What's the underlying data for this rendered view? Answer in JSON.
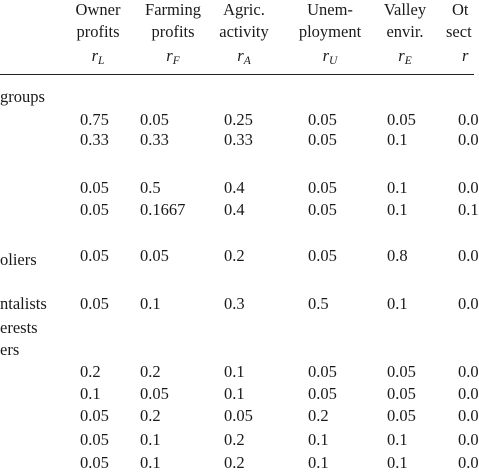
{
  "columns": [
    {
      "line1": "Owner",
      "line2": "profits",
      "var": "r",
      "sub": "L"
    },
    {
      "line1": "Farming",
      "line2": "profits",
      "var": "r",
      "sub": "F"
    },
    {
      "line1": "Agric.",
      "line2": "activity",
      "var": "r",
      "sub": "A"
    },
    {
      "line1": "Unem-",
      "line2": "ployment",
      "var": "r",
      "sub": "U"
    },
    {
      "line1": "Valley",
      "line2": "envir.",
      "var": "r",
      "sub": "E"
    },
    {
      "line1": "Ot",
      "line2": "sect",
      "var": "r",
      "sub": ""
    }
  ],
  "row_labels": {
    "g1": "groups",
    "g2": "oliers",
    "g3": "ntalists",
    "g4a": "erests",
    "g4b": "ers"
  },
  "rows": [
    [
      "0.75",
      "0.05",
      "0.25",
      "0.05",
      "0.05",
      "0.0"
    ],
    [
      "0.33",
      "0.33",
      "0.33",
      "0.05",
      "0.1",
      "0.0"
    ],
    [
      "0.05",
      "0.5",
      "0.4",
      "0.05",
      "0.1",
      "0.0"
    ],
    [
      "0.05",
      "0.1667",
      "0.4",
      "0.05",
      "0.1",
      "0.1"
    ],
    [
      "0.05",
      "0.05",
      "0.2",
      "0.05",
      "0.8",
      "0.0"
    ],
    [
      "0.05",
      "0.1",
      "0.3",
      "0.5",
      "0.1",
      "0.0"
    ],
    [
      "0.2",
      "0.2",
      "0.1",
      "0.05",
      "0.05",
      "0.0"
    ],
    [
      "0.1",
      "0.05",
      "0.1",
      "0.05",
      "0.05",
      "0.0"
    ],
    [
      "0.05",
      "0.2",
      "0.05",
      "0.2",
      "0.05",
      "0.0"
    ],
    [
      "0.05",
      "0.1",
      "0.2",
      "0.1",
      "0.1",
      "0.0"
    ],
    [
      "0.05",
      "0.1",
      "0.2",
      "0.1",
      "0.1",
      "0.0"
    ]
  ]
}
